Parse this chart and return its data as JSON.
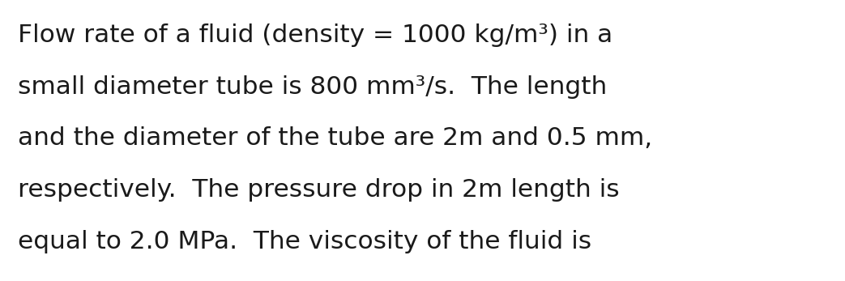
{
  "lines": [
    "Flow rate of a fluid (density = 1000 kg/m³) in a",
    "small diameter tube is 800 mm³/s.  The length",
    "and the diameter of the tube are 2m and 0.5 mm,",
    "respectively.  The pressure drop in 2m length is",
    "equal to 2.0 MPa.  The viscosity of the fluid is"
  ],
  "background_color": "#ffffff",
  "text_color": "#1a1a1a",
  "font_size": 22.5,
  "fig_width": 10.43,
  "fig_height": 3.47,
  "dpi": 100
}
